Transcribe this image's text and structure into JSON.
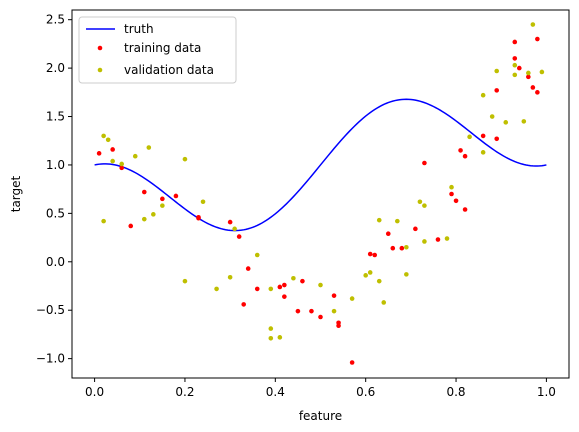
{
  "chart_data": {
    "type": "scatter",
    "title": "",
    "xlabel": "feature",
    "ylabel": "target",
    "xlim": [
      -0.05,
      1.05
    ],
    "ylim": [
      -1.2,
      2.6
    ],
    "xticks": [
      0.0,
      0.2,
      0.4,
      0.6,
      0.8,
      1.0
    ],
    "xtick_labels": [
      "0.0",
      "0.2",
      "0.4",
      "0.6",
      "0.8",
      "1.0"
    ],
    "yticks": [
      -1.0,
      -0.5,
      0.0,
      0.5,
      1.0,
      1.5,
      2.0,
      2.5
    ],
    "ytick_labels": [
      "−1.0",
      "−0.5",
      "0.0",
      "0.5",
      "1.0",
      "1.5",
      "2.0",
      "2.5"
    ],
    "grid": false,
    "legend_position": "top-left",
    "series": [
      {
        "name": "truth",
        "kind": "line",
        "color": "#0000ff",
        "function": "cos(3*pi*x)/2 + x + 0.5"
      },
      {
        "name": "training data",
        "kind": "scatter",
        "color": "#ff0000",
        "points": [
          [
            0.01,
            1.12
          ],
          [
            0.04,
            1.16
          ],
          [
            0.06,
            0.97
          ],
          [
            0.08,
            0.37
          ],
          [
            0.11,
            0.72
          ],
          [
            0.15,
            0.65
          ],
          [
            0.18,
            0.68
          ],
          [
            0.23,
            0.45
          ],
          [
            0.3,
            0.41
          ],
          [
            0.32,
            0.26
          ],
          [
            0.33,
            -0.44
          ],
          [
            0.34,
            -0.07
          ],
          [
            0.36,
            -0.28
          ],
          [
            0.41,
            -0.26
          ],
          [
            0.42,
            -0.24
          ],
          [
            0.42,
            -0.36
          ],
          [
            0.45,
            -0.51
          ],
          [
            0.46,
            -0.2
          ],
          [
            0.48,
            -0.51
          ],
          [
            0.5,
            -0.57
          ],
          [
            0.53,
            -0.35
          ],
          [
            0.54,
            -0.66
          ],
          [
            0.54,
            -0.63
          ],
          [
            0.57,
            -1.04
          ],
          [
            0.61,
            0.08
          ],
          [
            0.62,
            0.07
          ],
          [
            0.65,
            0.29
          ],
          [
            0.66,
            0.14
          ],
          [
            0.68,
            0.14
          ],
          [
            0.71,
            0.34
          ],
          [
            0.73,
            1.02
          ],
          [
            0.76,
            0.23
          ],
          [
            0.79,
            0.7
          ],
          [
            0.8,
            0.63
          ],
          [
            0.81,
            1.15
          ],
          [
            0.82,
            1.09
          ],
          [
            0.82,
            0.54
          ],
          [
            0.86,
            1.3
          ],
          [
            0.89,
            1.27
          ],
          [
            0.89,
            1.77
          ],
          [
            0.93,
            2.1
          ],
          [
            0.93,
            2.27
          ],
          [
            0.94,
            2.0
          ],
          [
            0.96,
            1.91
          ],
          [
            0.97,
            1.8
          ],
          [
            0.98,
            2.3
          ],
          [
            0.98,
            1.75
          ],
          [
            0.23,
            0.46
          ]
        ]
      },
      {
        "name": "validation data",
        "kind": "scatter",
        "color": "#bfbf00",
        "points": [
          [
            0.02,
            1.3
          ],
          [
            0.02,
            0.42
          ],
          [
            0.03,
            1.26
          ],
          [
            0.04,
            1.04
          ],
          [
            0.06,
            1.01
          ],
          [
            0.09,
            1.09
          ],
          [
            0.11,
            0.44
          ],
          [
            0.12,
            1.18
          ],
          [
            0.13,
            0.49
          ],
          [
            0.15,
            0.58
          ],
          [
            0.2,
            1.06
          ],
          [
            0.2,
            -0.2
          ],
          [
            0.24,
            0.62
          ],
          [
            0.27,
            -0.28
          ],
          [
            0.3,
            -0.16
          ],
          [
            0.31,
            0.34
          ],
          [
            0.36,
            0.07
          ],
          [
            0.39,
            -0.79
          ],
          [
            0.39,
            -0.69
          ],
          [
            0.39,
            -0.28
          ],
          [
            0.41,
            -0.78
          ],
          [
            0.44,
            -0.17
          ],
          [
            0.5,
            -0.24
          ],
          [
            0.53,
            -0.51
          ],
          [
            0.57,
            -0.38
          ],
          [
            0.6,
            -0.14
          ],
          [
            0.61,
            -0.11
          ],
          [
            0.63,
            -0.2
          ],
          [
            0.63,
            0.43
          ],
          [
            0.64,
            -0.42
          ],
          [
            0.67,
            0.42
          ],
          [
            0.69,
            0.15
          ],
          [
            0.69,
            -0.13
          ],
          [
            0.72,
            0.62
          ],
          [
            0.73,
            0.21
          ],
          [
            0.73,
            0.58
          ],
          [
            0.78,
            0.24
          ],
          [
            0.79,
            0.77
          ],
          [
            0.83,
            1.29
          ],
          [
            0.86,
            1.13
          ],
          [
            0.86,
            1.72
          ],
          [
            0.88,
            1.5
          ],
          [
            0.89,
            1.97
          ],
          [
            0.91,
            1.44
          ],
          [
            0.93,
            1.93
          ],
          [
            0.93,
            2.03
          ],
          [
            0.95,
            1.45
          ],
          [
            0.96,
            1.95
          ],
          [
            0.97,
            2.45
          ],
          [
            0.99,
            1.96
          ]
        ]
      }
    ]
  }
}
